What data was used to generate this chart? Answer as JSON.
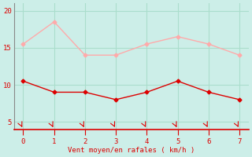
{
  "x": [
    0,
    1,
    2,
    3,
    4,
    5,
    6,
    7
  ],
  "y_moyen": [
    10.5,
    9.0,
    9.0,
    8.0,
    9.0,
    10.5,
    9.0,
    8.0
  ],
  "y_rafales": [
    15.5,
    18.5,
    14.0,
    14.0,
    15.5,
    16.5,
    15.5,
    14.0
  ],
  "color_moyen": "#dd0000",
  "color_rafales": "#ffaaaa",
  "xlabel": "Vent moyen/en rafales ( km/h )",
  "xlabel_color": "#dd0000",
  "background_color": "#cceee8",
  "grid_color": "#aaddcc",
  "spine_color": "#888888",
  "tick_color": "#dd0000",
  "ylim": [
    4,
    21
  ],
  "xlim": [
    -0.3,
    7.3
  ],
  "yticks": [
    5,
    10,
    15,
    20
  ],
  "xticks": [
    0,
    1,
    2,
    3,
    4,
    5,
    6,
    7
  ],
  "marker": "D",
  "markersize": 2.5,
  "linewidth": 1.0
}
